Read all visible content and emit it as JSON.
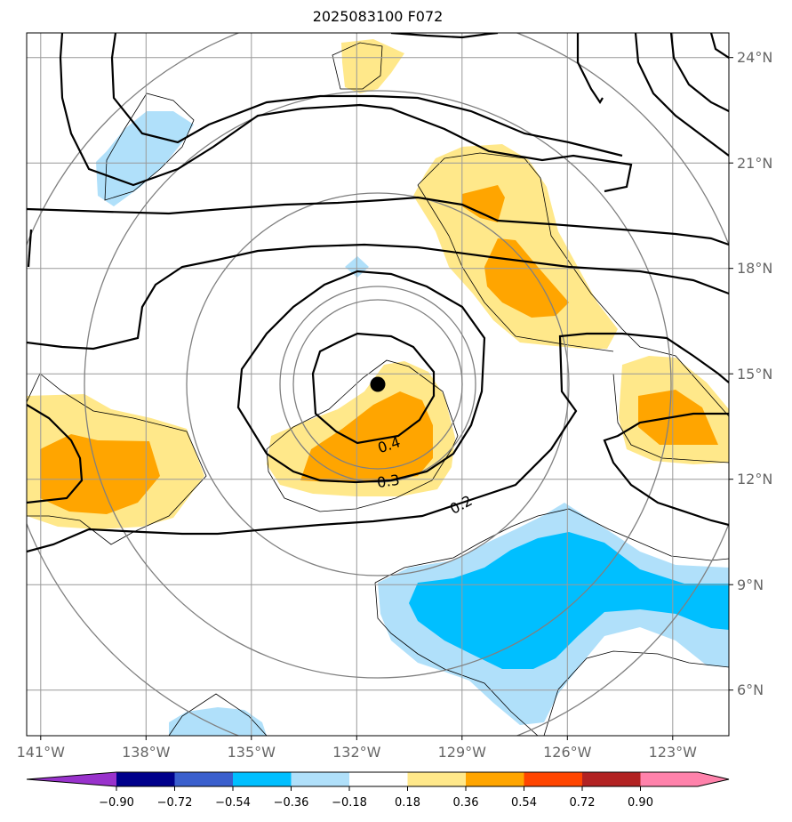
{
  "title": "2025083100 F072",
  "map": {
    "lon_range": [
      -141.4,
      -121.4
    ],
    "lat_range": [
      4.7,
      24.7
    ],
    "lon_ticks": [
      {
        "value": -141,
        "label": "141°W"
      },
      {
        "value": -138,
        "label": "138°W"
      },
      {
        "value": -135,
        "label": "135°W"
      },
      {
        "value": -132,
        "label": "132°W"
      },
      {
        "value": -129,
        "label": "129°W"
      },
      {
        "value": -126,
        "label": "126°W"
      },
      {
        "value": -123,
        "label": "123°W"
      }
    ],
    "lat_ticks": [
      {
        "value": 6,
        "label": "6°N"
      },
      {
        "value": 9,
        "label": "9°N"
      },
      {
        "value": 12,
        "label": "12°N"
      },
      {
        "value": 15,
        "label": "15°N"
      },
      {
        "value": 18,
        "label": "18°N"
      },
      {
        "value": 21,
        "label": "21°N"
      },
      {
        "value": 24,
        "label": "24°N"
      }
    ],
    "grid": true,
    "center": {
      "lon": -131.4,
      "lat": 14.6
    },
    "range_ring_radii_deg": [
      2,
      3,
      5,
      8
    ],
    "contour_labels": [
      {
        "text": "0.4",
        "lon": -131.0,
        "lat": 13.1
      },
      {
        "text": "0.3",
        "lon": -131.0,
        "lat": 12.0
      },
      {
        "text": "0.2",
        "lon": -128.9,
        "lat": 11.1
      }
    ]
  },
  "colorbar": {
    "tick_labels": [
      "−0.90",
      "−0.72",
      "−0.54",
      "−0.36",
      "−0.18",
      "0.18",
      "0.36",
      "0.54",
      "0.72",
      "0.90"
    ],
    "colors": [
      "#9932cc",
      "#00008b",
      "#3a5fcd",
      "#00bfff",
      "#b0e0fa",
      "#ffffff",
      "#ffe88a",
      "#ffa500",
      "#ff4500",
      "#b22222",
      "#ff82ab"
    ]
  }
}
